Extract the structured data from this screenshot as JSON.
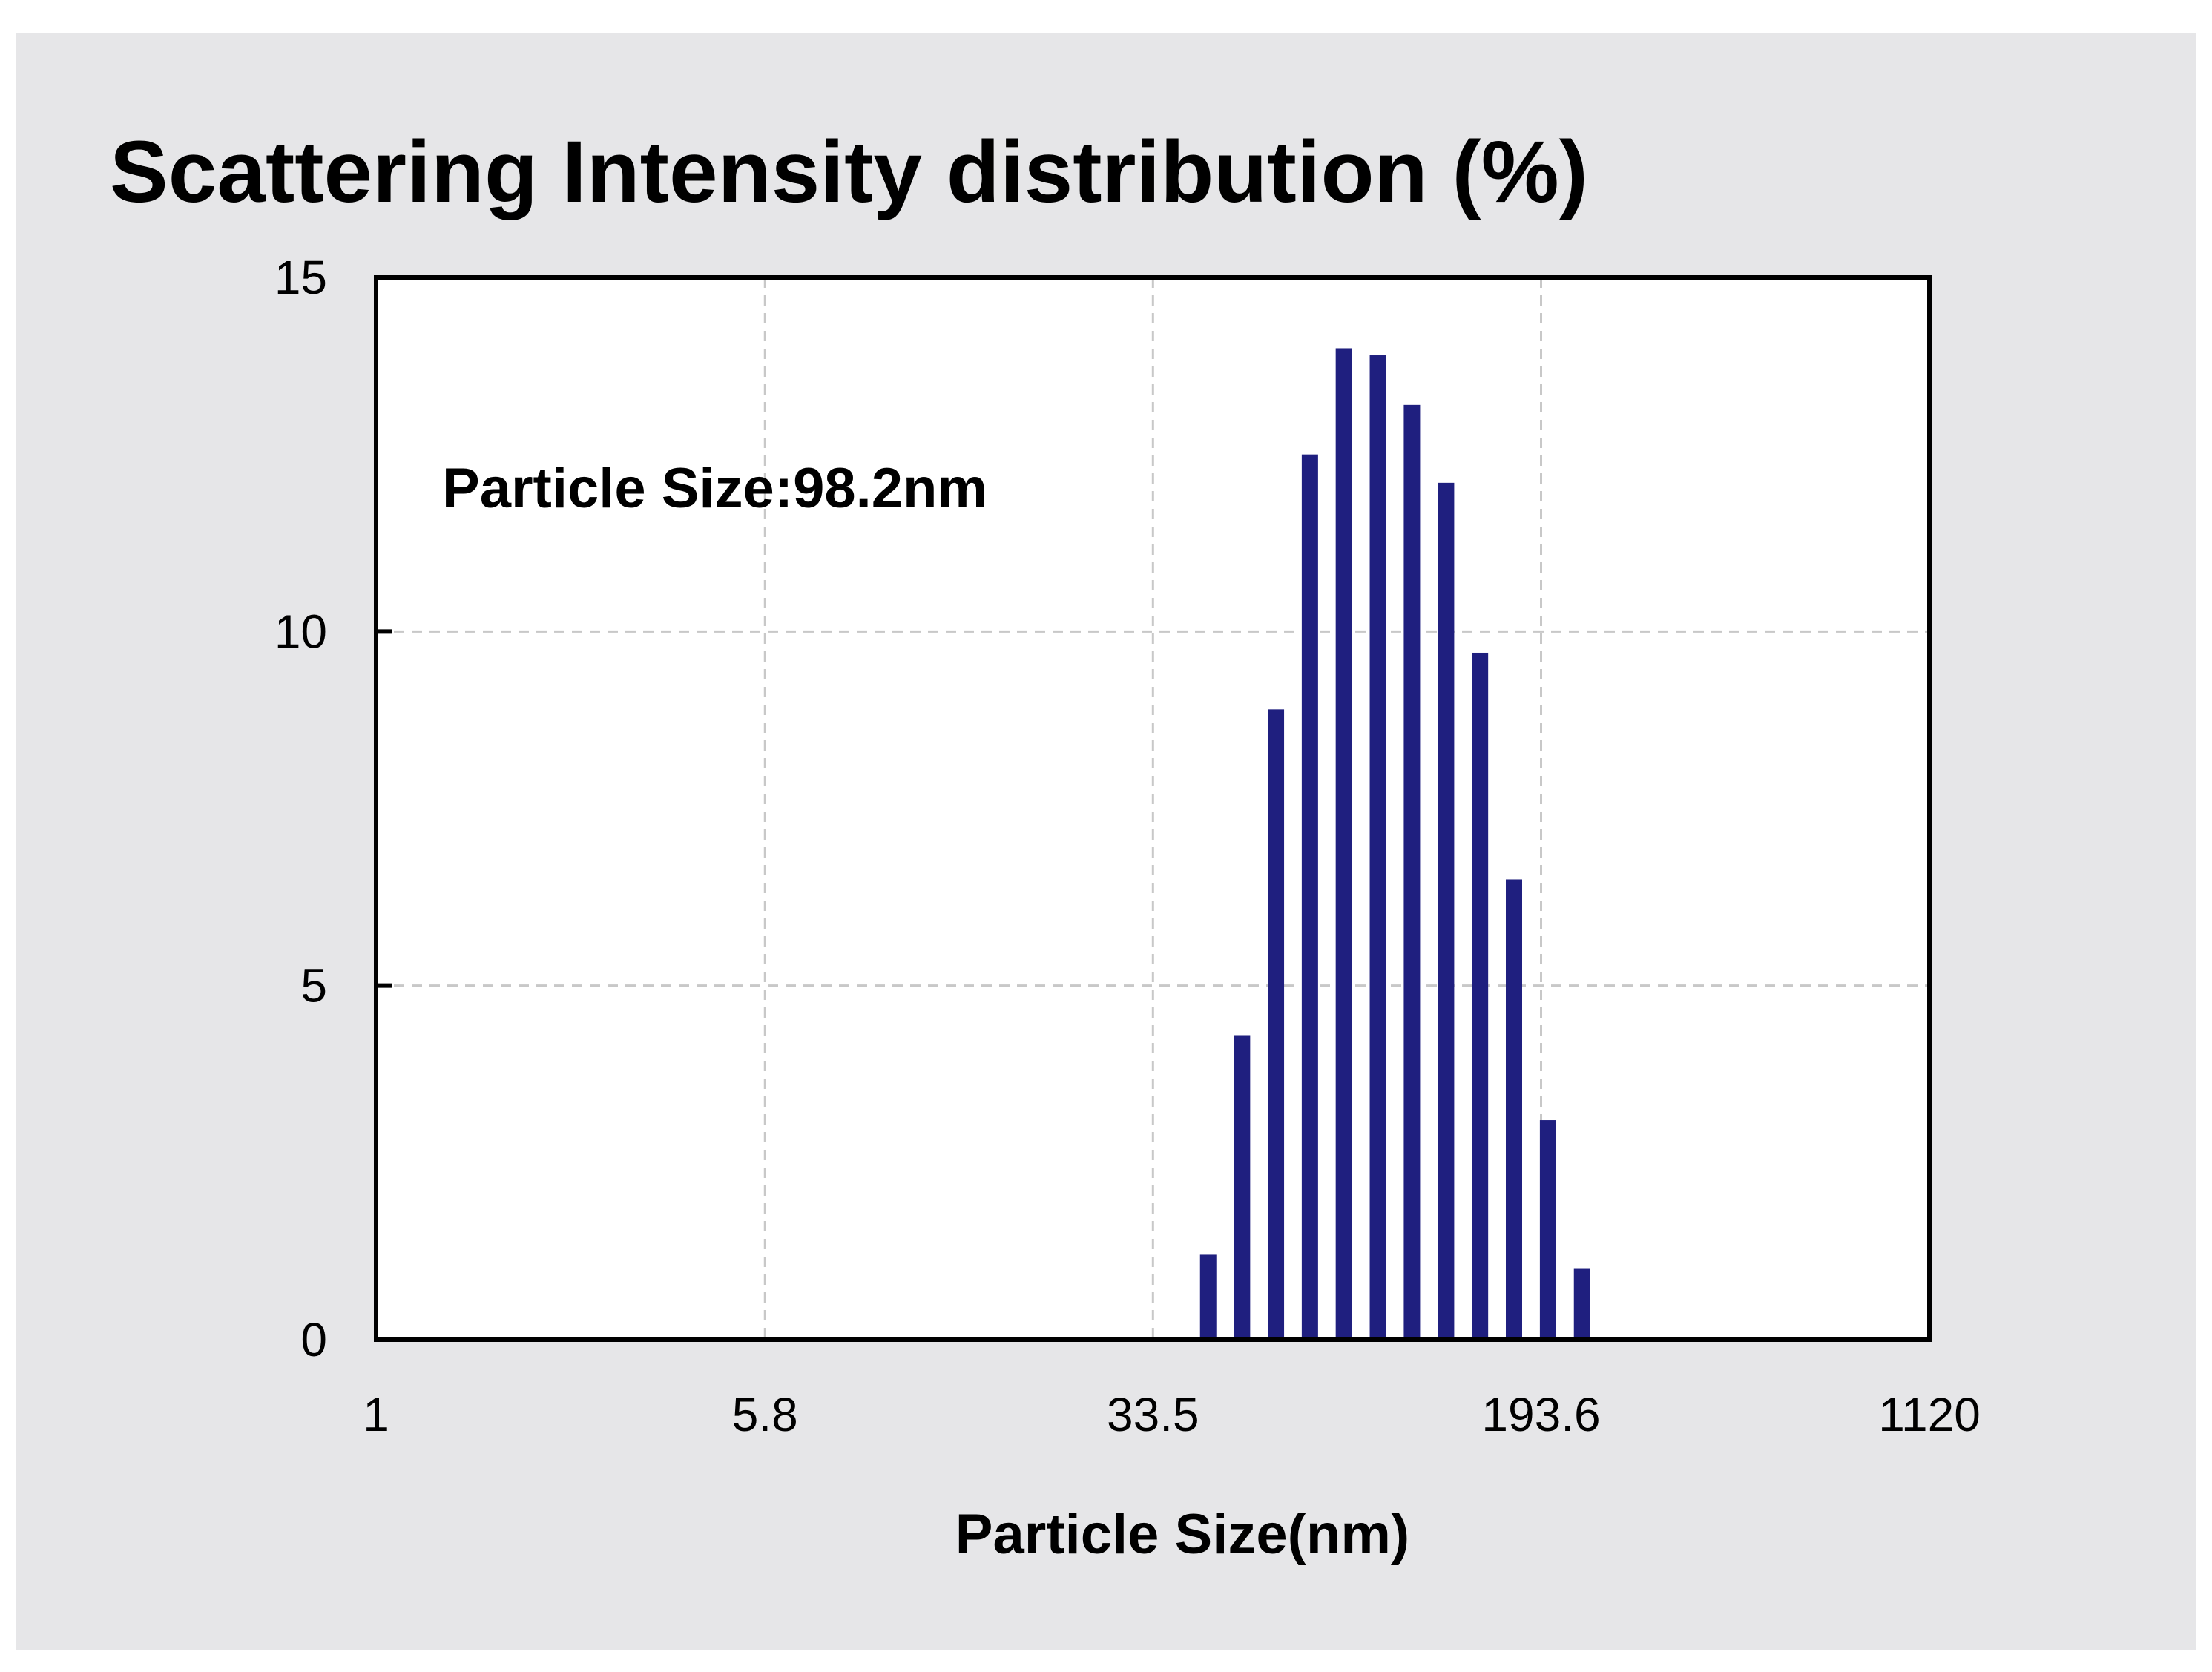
{
  "chart_data": {
    "type": "bar",
    "title": "Scattering Intensity distribution (%)",
    "xlabel": "Particle Size(nm)",
    "ylabel": "",
    "annotation": "Particle Size:98.2nm",
    "x_scale": "log",
    "xlim": [
      1,
      1120
    ],
    "ylim": [
      0,
      15
    ],
    "x_ticks": [
      "1",
      "5.8",
      "33.5",
      "193.6",
      "1120"
    ],
    "x_tick_values": [
      1,
      5.8,
      33.5,
      193.6,
      1120
    ],
    "y_ticks": [
      "0",
      "5",
      "10",
      "15"
    ],
    "y_tick_values": [
      0,
      5,
      10,
      15
    ],
    "grid": true,
    "bar_color": "#1f1f7f",
    "x": [
      43.0,
      50.1,
      58.4,
      68.1,
      79.4,
      92.6,
      108.0,
      126.0,
      146.9,
      171.3,
      199.8,
      233.0,
      271.8
    ],
    "values": [
      1.2,
      4.3,
      8.9,
      12.5,
      14.0,
      13.9,
      13.2,
      12.1,
      9.7,
      6.5,
      3.1,
      1.0,
      0
    ]
  }
}
